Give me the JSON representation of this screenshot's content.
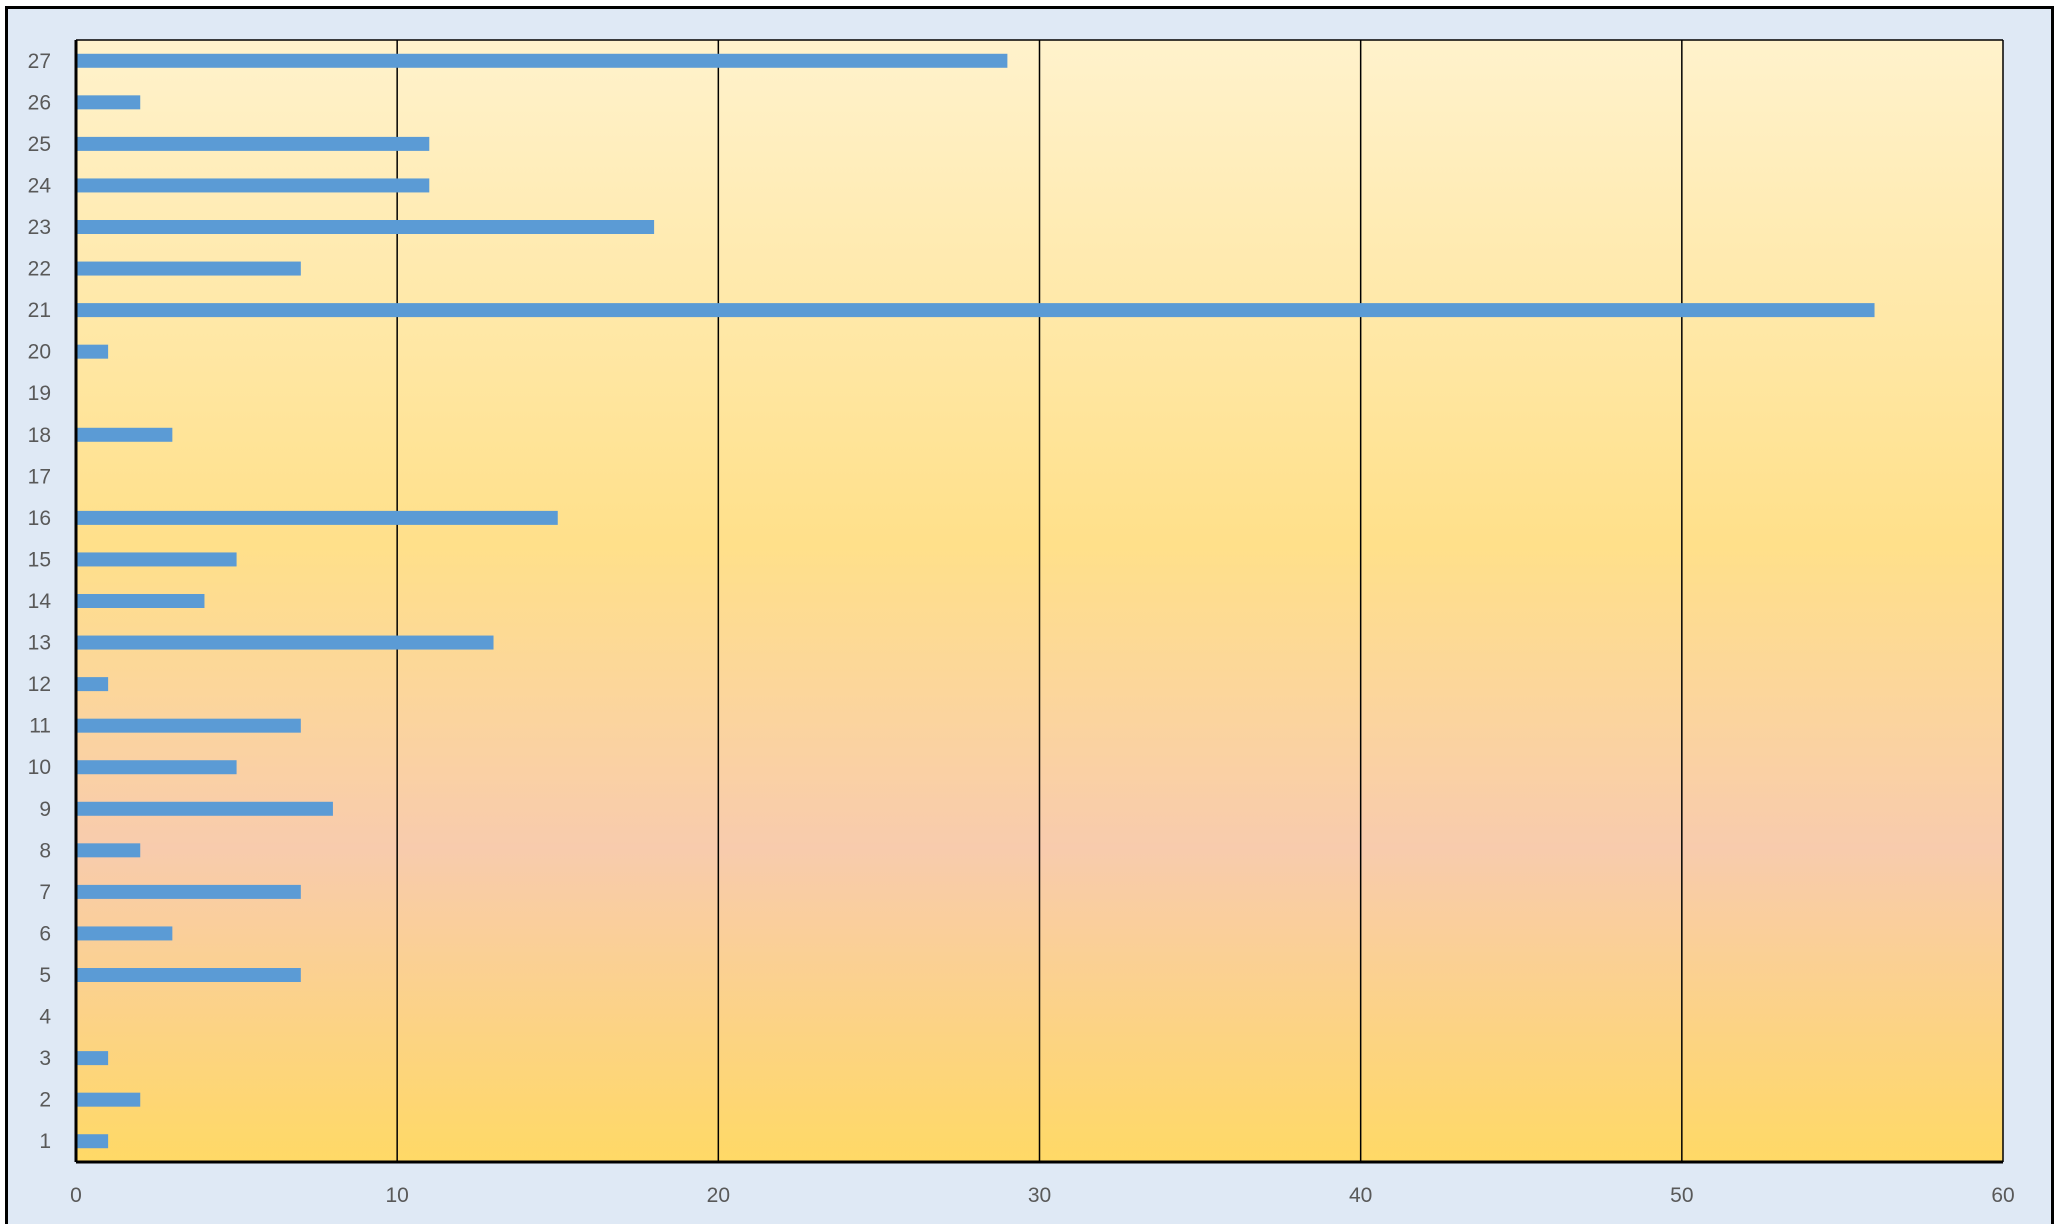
{
  "chart_data": {
    "type": "bar",
    "orientation": "horizontal",
    "categories": [
      "1",
      "2",
      "3",
      "4",
      "5",
      "6",
      "7",
      "8",
      "9",
      "10",
      "11",
      "12",
      "13",
      "14",
      "15",
      "16",
      "17",
      "18",
      "19",
      "20",
      "21",
      "22",
      "23",
      "24",
      "25",
      "26",
      "27"
    ],
    "values": [
      1,
      2,
      1,
      0,
      7,
      3,
      7,
      2,
      8,
      5,
      7,
      1,
      13,
      4,
      5,
      15,
      0,
      3,
      0,
      1,
      56,
      7,
      18,
      11,
      11,
      2,
      29
    ],
    "xlim": [
      0,
      60
    ],
    "x_ticks": [
      "0",
      "10",
      "20",
      "30",
      "40",
      "50",
      "60"
    ],
    "grid": "vertical",
    "legend": "none",
    "colors": {
      "bar": "#5b9bd5",
      "plot_gradient_top": "#fff2cc",
      "plot_gradient_mid": "#f8cbad",
      "plot_gradient_bottom": "#ffd966",
      "frame_background": "#dfe9f5",
      "gridline": "#000000",
      "tick_text": "#595959"
    }
  }
}
